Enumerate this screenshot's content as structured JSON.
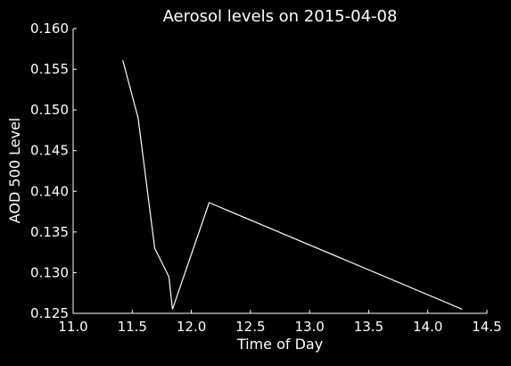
{
  "chart_data": {
    "type": "line",
    "title": "Aerosol levels on 2015-04-08",
    "xlabel": "Time of Day",
    "ylabel": "AOD 500 Level",
    "xlim": [
      11.0,
      14.5
    ],
    "ylim": [
      0.125,
      0.16
    ],
    "xticks": [
      "11.0",
      "11.5",
      "12.0",
      "12.5",
      "13.0",
      "13.5",
      "14.0",
      "14.5"
    ],
    "yticks": [
      "0.125",
      "0.130",
      "0.135",
      "0.140",
      "0.145",
      "0.150",
      "0.155",
      "0.160"
    ],
    "grid": false,
    "legend": "none",
    "colors": {
      "background": "#000000",
      "line": "#ffffff",
      "axes": "#ffffff",
      "text": "#ffffff"
    },
    "series": [
      {
        "x": [
          11.42,
          11.55,
          11.69,
          11.81,
          11.84,
          12.15,
          14.29
        ],
        "y": [
          0.1561,
          0.149,
          0.133,
          0.1295,
          0.1255,
          0.1386,
          0.1255
        ]
      }
    ]
  }
}
